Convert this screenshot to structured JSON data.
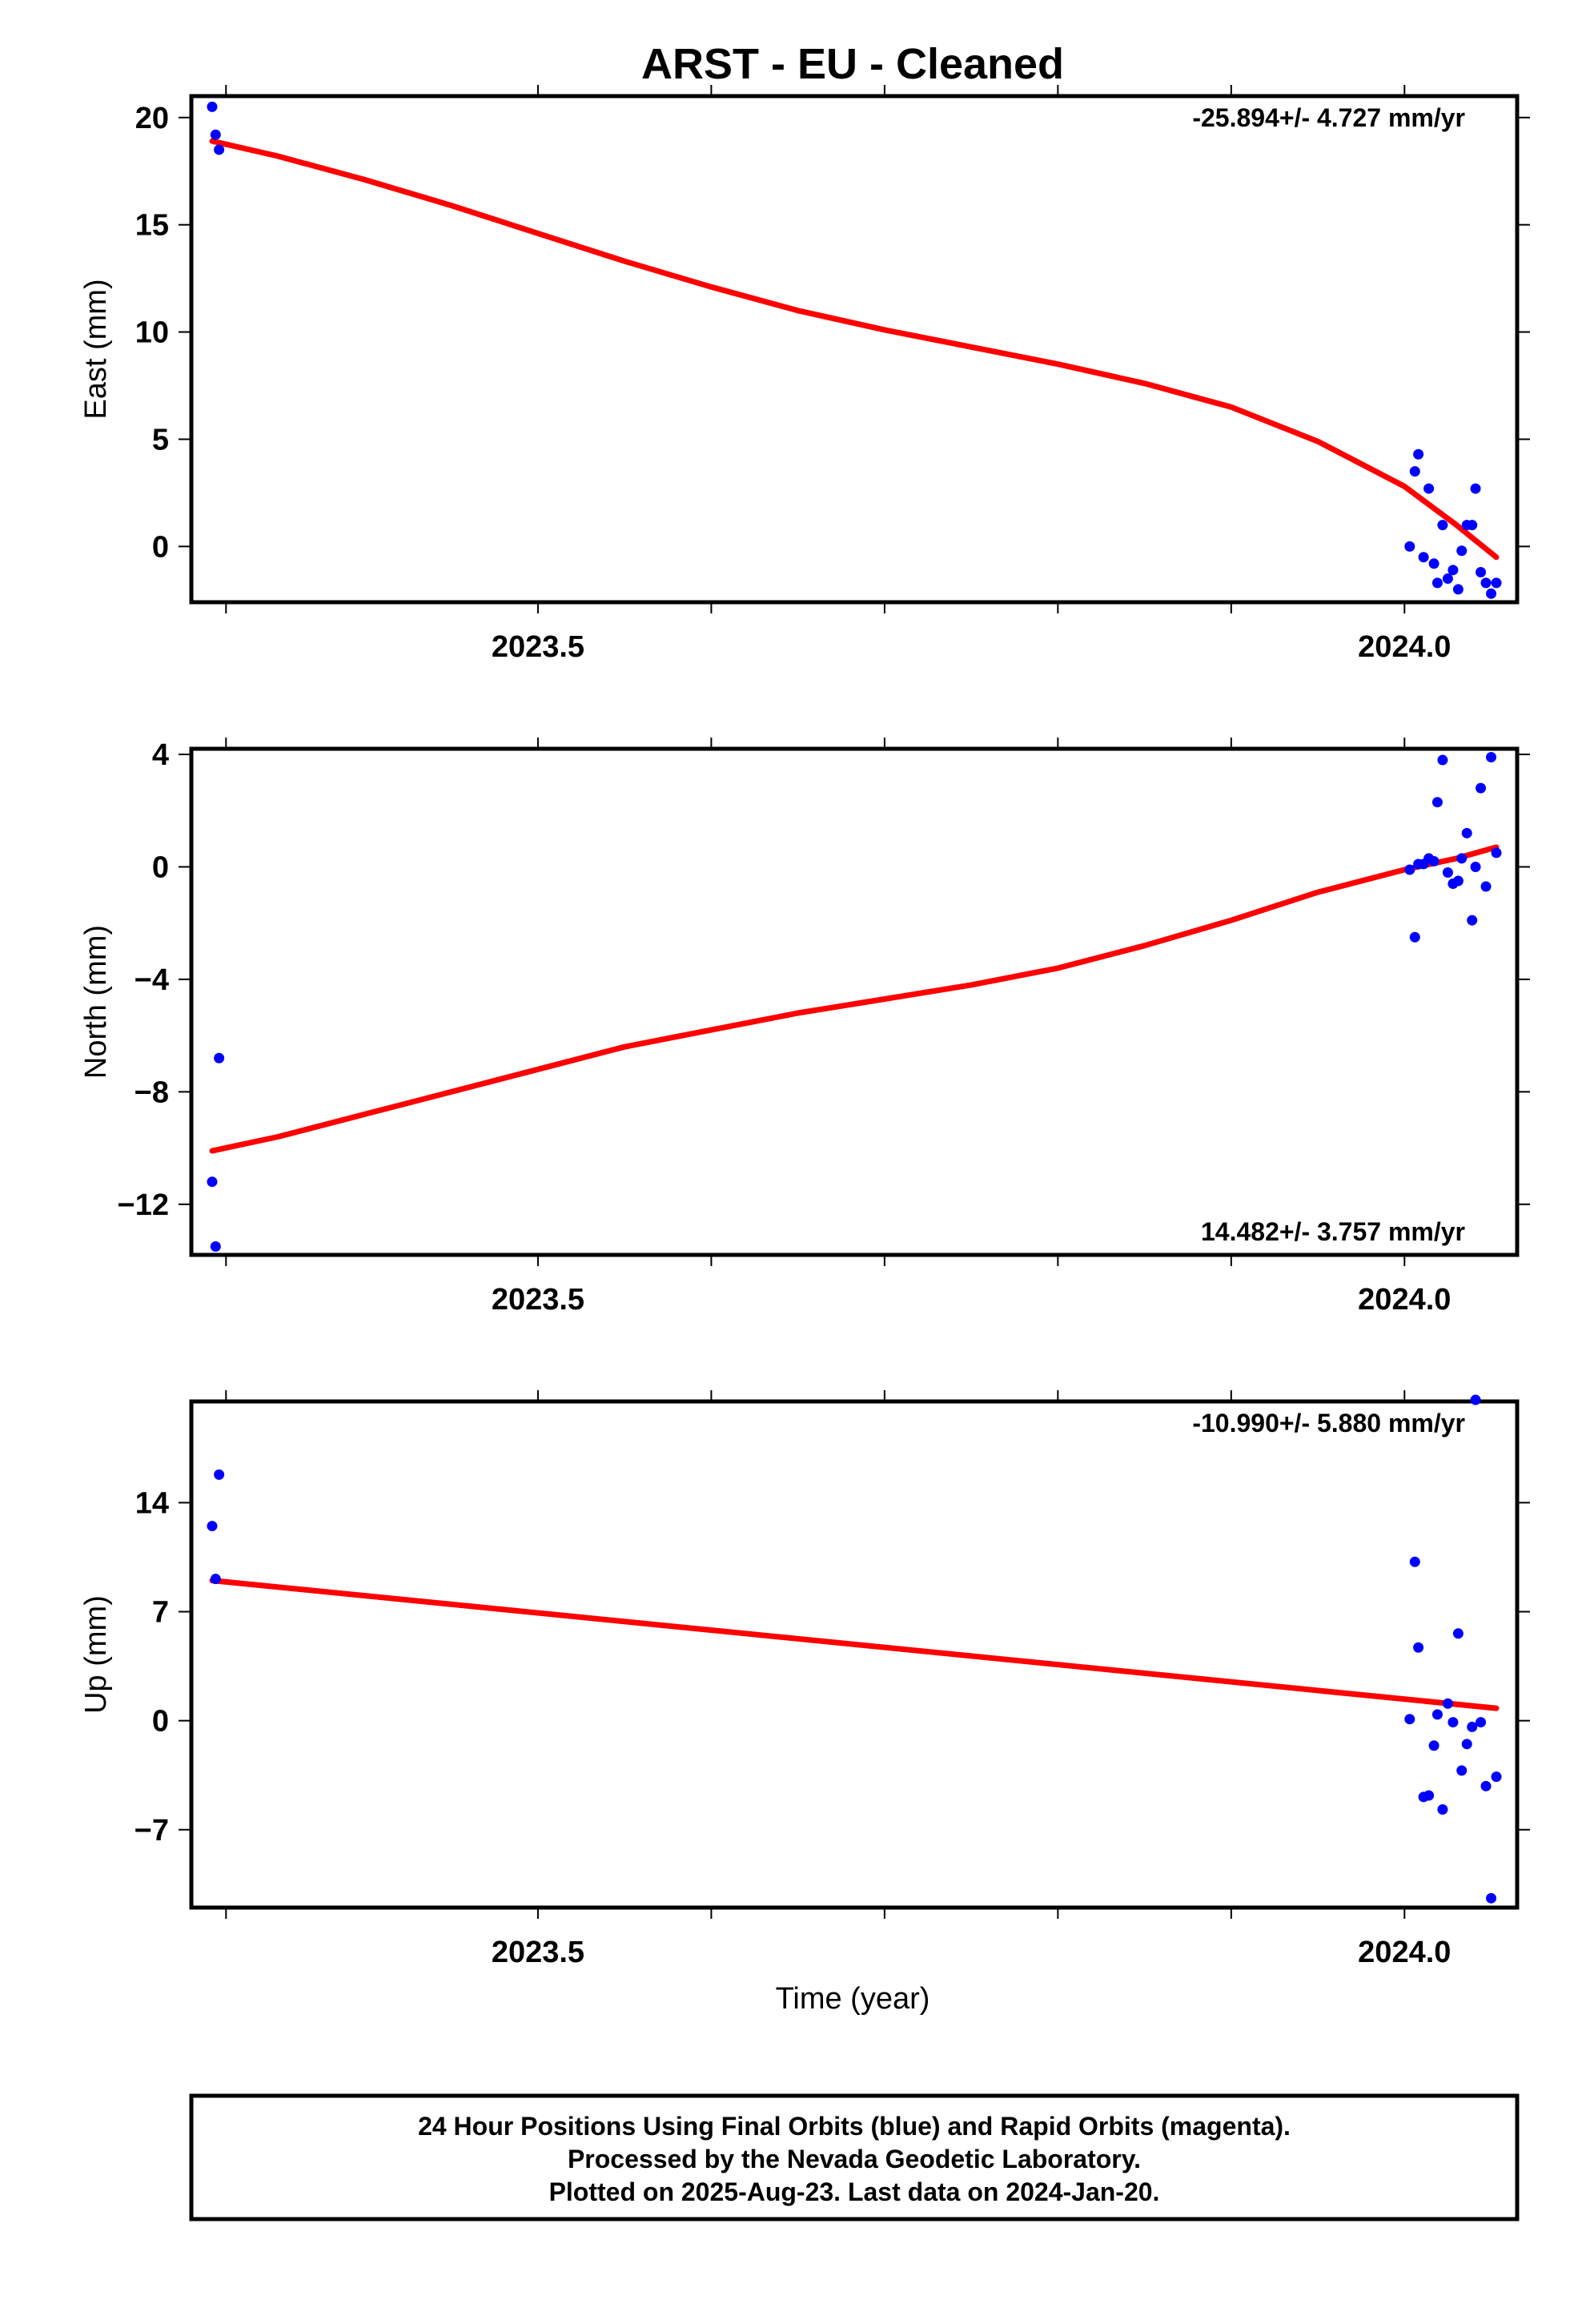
{
  "title": "ARST  - EU - Cleaned",
  "colors": {
    "data_points": "#0000ff",
    "trend_line": "#ff0000",
    "frame": "#000000"
  },
  "chart_data": [
    {
      "type": "scatter",
      "ylabel": "East (mm)",
      "xlabel": "",
      "xlim": [
        2023.3,
        2024.065
      ],
      "ylim": [
        -2.6,
        21
      ],
      "xticks": [
        2023.5,
        2024.0
      ],
      "xtick_labels": [
        "2023.5",
        "2024.0"
      ],
      "xminor_ticks": [
        2023.32,
        2023.5,
        2023.6,
        2023.7,
        2023.8,
        2023.9,
        2024.0
      ],
      "yticks": [
        0,
        5,
        10,
        15,
        20
      ],
      "ytick_labels": [
        "0",
        "5",
        "10",
        "15",
        "20"
      ],
      "rate_text": "-25.894+/- 4.727 mm/yr",
      "rate_position": "top-right",
      "series": [
        {
          "kind": "points",
          "x": [
            2023.312,
            2023.314,
            2023.316,
            2024.003,
            2024.006,
            2024.008,
            2024.011,
            2024.014,
            2024.017,
            2024.019,
            2024.022,
            2024.025,
            2024.028,
            2024.031,
            2024.033,
            2024.036,
            2024.039,
            2024.041,
            2024.044,
            2024.047,
            2024.05,
            2024.053
          ],
          "y": [
            20.5,
            19.2,
            18.5,
            0.0,
            3.5,
            4.3,
            -0.5,
            2.7,
            -0.8,
            -1.7,
            1.0,
            -1.5,
            -1.1,
            -2.0,
            -0.2,
            1.0,
            1.0,
            2.7,
            -1.2,
            -1.7,
            -2.2,
            -1.7
          ]
        },
        {
          "kind": "line",
          "x": [
            2023.312,
            2023.35,
            2023.4,
            2023.45,
            2023.5,
            2023.55,
            2023.6,
            2023.65,
            2023.7,
            2023.75,
            2023.8,
            2023.85,
            2023.9,
            2023.95,
            2024.0,
            2024.03,
            2024.053
          ],
          "y": [
            18.9,
            18.2,
            17.1,
            15.9,
            14.6,
            13.3,
            12.1,
            11.0,
            10.1,
            9.3,
            8.5,
            7.6,
            6.5,
            4.9,
            2.8,
            1.0,
            -0.5
          ]
        }
      ]
    },
    {
      "type": "scatter",
      "ylabel": "North (mm)",
      "xlabel": "",
      "xlim": [
        2023.3,
        2024.065
      ],
      "ylim": [
        -13.8,
        4.2
      ],
      "xticks": [
        2023.5,
        2024.0
      ],
      "xtick_labels": [
        "2023.5",
        "2024.0"
      ],
      "xminor_ticks": [
        2023.32,
        2023.5,
        2023.6,
        2023.7,
        2023.8,
        2023.9,
        2024.0
      ],
      "yticks": [
        -12,
        -8,
        -4,
        0,
        4
      ],
      "ytick_labels": [
        "−12",
        "−8",
        "−4",
        "0",
        "4"
      ],
      "rate_text": "14.482+/- 3.757 mm/yr",
      "rate_position": "bottom-right",
      "series": [
        {
          "kind": "points",
          "x": [
            2023.312,
            2023.314,
            2023.316,
            2024.003,
            2024.006,
            2024.008,
            2024.011,
            2024.014,
            2024.017,
            2024.019,
            2024.022,
            2024.025,
            2024.028,
            2024.031,
            2024.033,
            2024.036,
            2024.039,
            2024.041,
            2024.044,
            2024.047,
            2024.05,
            2024.053
          ],
          "y": [
            -11.2,
            -13.5,
            -6.8,
            -0.1,
            -2.5,
            0.1,
            0.1,
            0.3,
            0.2,
            2.3,
            3.8,
            -0.2,
            -0.6,
            -0.5,
            0.3,
            1.2,
            -1.9,
            0.0,
            2.8,
            -0.7,
            3.9,
            0.5
          ]
        },
        {
          "kind": "line",
          "x": [
            2023.312,
            2023.35,
            2023.4,
            2023.45,
            2023.5,
            2023.55,
            2023.6,
            2023.65,
            2023.7,
            2023.75,
            2023.8,
            2023.85,
            2023.9,
            2023.95,
            2024.0,
            2024.03,
            2024.053
          ],
          "y": [
            -10.1,
            -9.6,
            -8.8,
            -8.0,
            -7.2,
            -6.4,
            -5.8,
            -5.2,
            -4.7,
            -4.2,
            -3.6,
            -2.8,
            -1.9,
            -0.9,
            -0.1,
            0.3,
            0.7
          ]
        }
      ]
    },
    {
      "type": "scatter",
      "ylabel": "Up (mm)",
      "xlabel": "Time (year)",
      "xlim": [
        2023.3,
        2024.065
      ],
      "ylim": [
        -12.0,
        20.5
      ],
      "xticks": [
        2023.5,
        2024.0
      ],
      "xtick_labels": [
        "2023.5",
        "2024.0"
      ],
      "xminor_ticks": [
        2023.32,
        2023.5,
        2023.6,
        2023.7,
        2023.8,
        2023.9,
        2024.0
      ],
      "yticks": [
        -7,
        0,
        7,
        14
      ],
      "ytick_labels": [
        "−7",
        "0",
        "7",
        "14"
      ],
      "rate_text": "-10.990+/- 5.880 mm/yr",
      "rate_position": "top-right",
      "series": [
        {
          "kind": "points",
          "x": [
            2023.312,
            2023.314,
            2023.316,
            2024.003,
            2024.006,
            2024.008,
            2024.011,
            2024.014,
            2024.017,
            2024.019,
            2024.022,
            2024.025,
            2024.028,
            2024.031,
            2024.033,
            2024.036,
            2024.039,
            2024.041,
            2024.044,
            2024.047,
            2024.05,
            2024.053
          ],
          "y": [
            12.5,
            9.1,
            15.8,
            0.1,
            10.2,
            4.7,
            -4.9,
            -4.8,
            -1.6,
            0.4,
            -5.7,
            1.1,
            -0.1,
            5.6,
            -3.2,
            -1.5,
            -0.4,
            20.6,
            -0.1,
            -4.2,
            -11.4,
            -3.6
          ]
        },
        {
          "kind": "line",
          "x": [
            2023.312,
            2024.053
          ],
          "y": [
            9.0,
            0.8
          ]
        }
      ]
    }
  ],
  "footer": {
    "line1": "24 Hour Positions Using Final Orbits (blue) and Rapid Orbits (magenta).",
    "line2": "Processed by the Nevada Geodetic Laboratory.",
    "line3": "Plotted on 2025-Aug-23. Last data on 2024-Jan-20."
  }
}
